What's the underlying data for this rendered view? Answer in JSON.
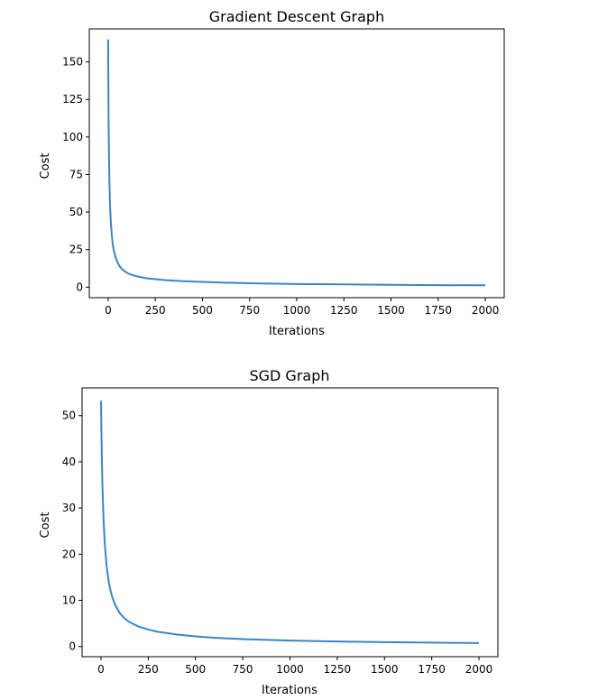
{
  "chart_data": [
    {
      "type": "line",
      "title": "Gradient Descent Graph",
      "xlabel": "Iterations",
      "ylabel": "Cost",
      "xlim": [
        -100,
        2100
      ],
      "ylim": [
        -7,
        172
      ],
      "xticks": [
        0,
        250,
        500,
        750,
        1000,
        1250,
        1500,
        1750,
        2000
      ],
      "yticks": [
        0,
        25,
        50,
        75,
        100,
        125,
        150
      ],
      "grid": false,
      "color": "#3a86c3",
      "series": [
        {
          "x": [
            0,
            1,
            2,
            3,
            5,
            7,
            10,
            15,
            20,
            25,
            30,
            40,
            50,
            60,
            75,
            100,
            125,
            150,
            200,
            250,
            300,
            400,
            500,
            600,
            750,
            1000,
            1250,
            1500,
            1750,
            2000
          ],
          "values": [
            165,
            140,
            120,
            104,
            82,
            68,
            54,
            42,
            34,
            28,
            24.5,
            19.5,
            16.5,
            14,
            11.8,
            9.5,
            8.2,
            7.3,
            6,
            5.3,
            4.7,
            4,
            3.5,
            3.1,
            2.6,
            2.1,
            1.8,
            1.5,
            1.35,
            1.2
          ]
        }
      ]
    },
    {
      "type": "line",
      "title": "SGD Graph",
      "xlabel": "Iterations",
      "ylabel": "Cost",
      "xlim": [
        -100,
        2100
      ],
      "ylim": [
        -2.2,
        56
      ],
      "xticks": [
        0,
        250,
        500,
        750,
        1000,
        1250,
        1500,
        1750,
        2000
      ],
      "yticks": [
        0,
        10,
        20,
        30,
        40,
        50
      ],
      "grid": false,
      "color": "#3a86c3",
      "series": [
        {
          "x": [
            0,
            2,
            5,
            8,
            12,
            16,
            20,
            25,
            30,
            40,
            50,
            60,
            75,
            100,
            125,
            150,
            200,
            250,
            300,
            400,
            500,
            600,
            750,
            1000,
            1250,
            1500,
            1750,
            2000
          ],
          "values": [
            53.2,
            47,
            40,
            34.5,
            29,
            25.5,
            22.5,
            19.8,
            17.5,
            14.3,
            12.2,
            10.7,
            9,
            7.2,
            6.1,
            5.3,
            4.3,
            3.7,
            3.2,
            2.6,
            2.2,
            1.9,
            1.6,
            1.3,
            1.1,
            0.95,
            0.85,
            0.75
          ]
        }
      ]
    }
  ]
}
